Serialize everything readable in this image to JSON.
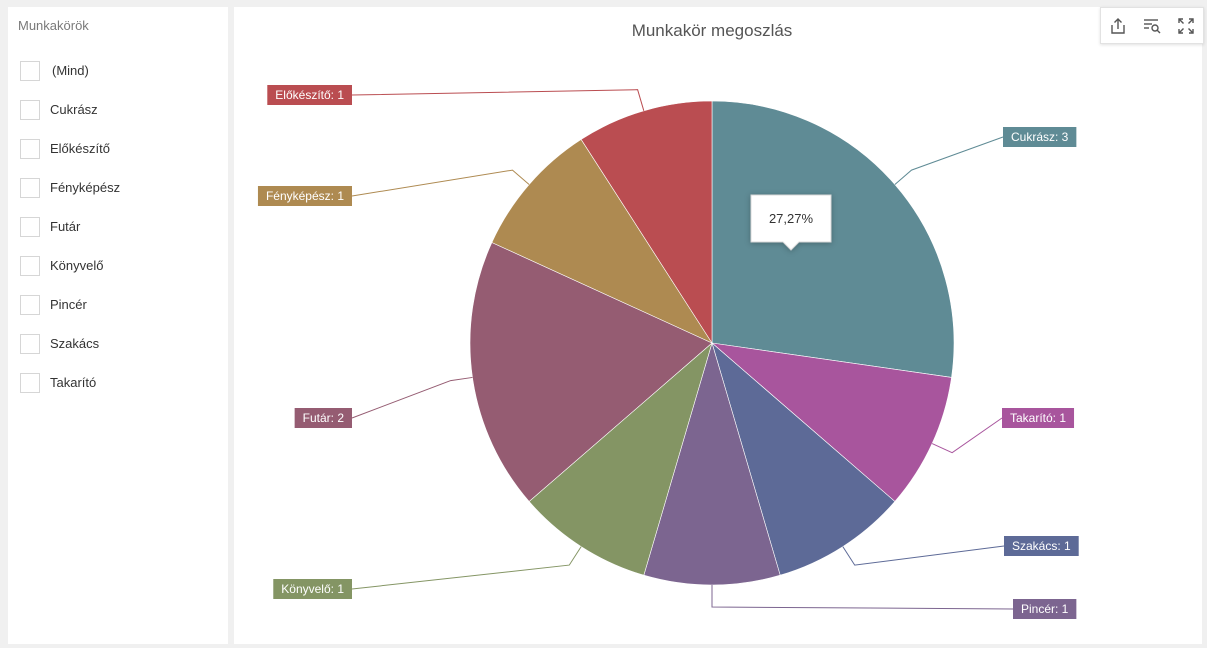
{
  "filter": {
    "title": "Munkakörök",
    "items": [
      "(Mind)",
      "Cukrász",
      "Előkészítő",
      "Fényképész",
      "Futár",
      "Könyvelő",
      "Pincér",
      "Szakács",
      "Takarító"
    ]
  },
  "toolbar": {
    "icons": [
      "export-icon",
      "filter-search-icon",
      "fullscreen-icon"
    ]
  },
  "chart_data": {
    "type": "pie",
    "title": "Munkakör megoszlás",
    "tooltip": "27,27%",
    "slices": [
      {
        "label": "Cukrász: 3",
        "value": 3,
        "color": "#5f8b95"
      },
      {
        "label": "Takarító: 1",
        "value": 1,
        "color": "#a8559d"
      },
      {
        "label": "Szakács: 1",
        "value": 1,
        "color": "#5d6a97"
      },
      {
        "label": "Pincér: 1",
        "value": 1,
        "color": "#7c6590"
      },
      {
        "label": "Könyvelő: 1",
        "value": 1,
        "color": "#849564"
      },
      {
        "label": "Futár: 2",
        "value": 2,
        "color": "#955c72"
      },
      {
        "label": "Fényképész: 1",
        "value": 1,
        "color": "#ae8a51"
      },
      {
        "label": "Előkészítő: 1",
        "value": 1,
        "color": "#ba4d51"
      }
    ]
  }
}
